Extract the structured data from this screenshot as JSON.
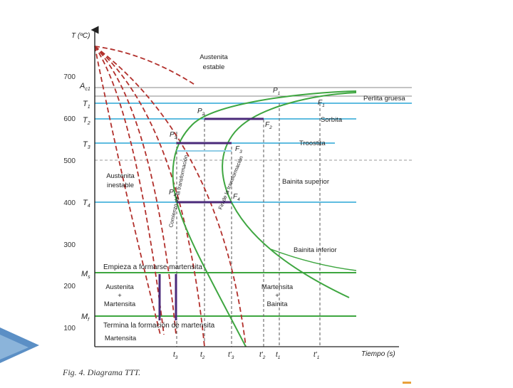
{
  "caption": "Fig. 4. Diagrama TTT.",
  "axes": {
    "y_label": "T (ºC)",
    "x_label": "Tiempo (s)",
    "y_ticks": [
      "700",
      "600",
      "500",
      "400",
      "300",
      "200",
      "100"
    ]
  },
  "temperature_marks": {
    "Ac1": "A",
    "Ac1_sub": "c1",
    "T1": "T",
    "T1_sub": "1",
    "T2": "T",
    "T2_sub": "2",
    "T3": "T",
    "T3_sub": "3",
    "T4": "T",
    "T4_sub": "4",
    "Ms": "M",
    "Ms_sub": "s",
    "Mf": "M",
    "Mf_sub": "f"
  },
  "regions": {
    "austenita_estable_1": "Austenita",
    "austenita_estable_2": "estable",
    "austenita_inestable_1": "Austenita",
    "austenita_inestable_2": "inestable",
    "austenita_martensita_1": "Austenita",
    "austenita_martensita_2": "+",
    "austenita_martensita_3": "Martensita",
    "martensita_bainita_1": "Martensita",
    "martensita_bainita_2": "+",
    "martensita_bainita_3": "Bainita",
    "martensita": "Martensita"
  },
  "structures": {
    "perlita_gruesa": "Perlita gruesa",
    "sorbita": "Sorbita",
    "troostita": "Troostita",
    "bainita_superior": "Bainita superior",
    "bainita_inferior": "Bainita inferior"
  },
  "lines": {
    "ms_line": "Empieza a formarse martensita",
    "mf_line": "Termina la formación de martensita"
  },
  "curves": {
    "start": "Comienzo de la transformación",
    "end": "Fin de la transformación"
  },
  "points": {
    "P1": "P",
    "P1_sub": "1",
    "P2": "P",
    "P2_sub": "2",
    "P3": "P",
    "P3_sub": "3",
    "P4": "P",
    "P4_sub": "4",
    "F1": "F",
    "F1_sub": "1",
    "F2": "F",
    "F2_sub": "2",
    "F3": "F",
    "F3_sub": "3",
    "F4": "F",
    "F4_sub": "4"
  },
  "time_marks": {
    "t3": "t",
    "t3_sub": "3",
    "t2": "t",
    "t2_sub": "2",
    "t3p": "t'",
    "t3p_sub": "3",
    "t2p": "t'",
    "t2p_sub": "2",
    "t1": "t",
    "t1_sub": "1",
    "t1p": "t'",
    "t1p_sub": "1"
  },
  "colors": {
    "isotherm": "#2aa6d6",
    "curves": "#3ea640",
    "cooling": "#b2302c",
    "transform": "#4a2a7a",
    "slide_accent": "#2e6aa8"
  }
}
